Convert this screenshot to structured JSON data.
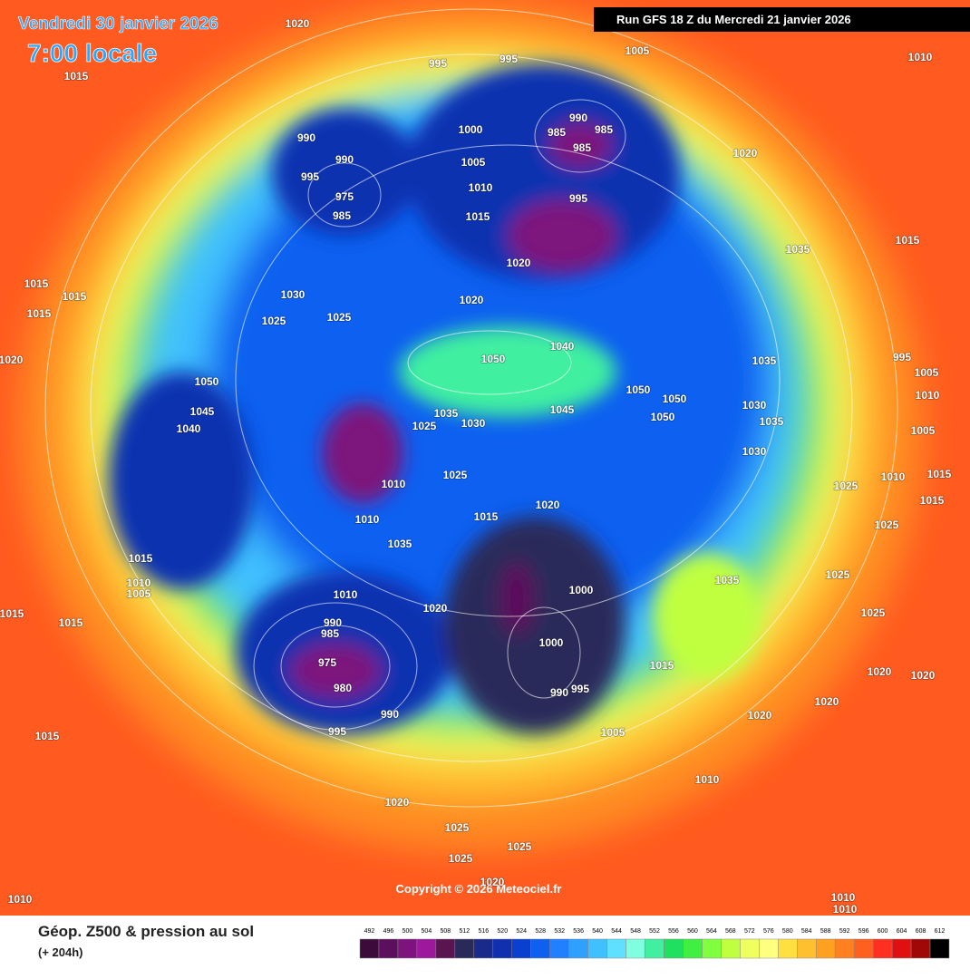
{
  "header": {
    "date": "Vendredi 30 janvier 2026",
    "time": "7:00 locale",
    "run": "Run GFS 18 Z du Mercredi 21 janvier 2026"
  },
  "copyright": "Copyright © 2026 Meteociel.fr",
  "legend": {
    "title": "Géop. Z500 & pression au sol",
    "lead": "(+ 204h)",
    "levels": [
      492,
      496,
      500,
      504,
      508,
      512,
      516,
      520,
      524,
      528,
      532,
      536,
      540,
      544,
      548,
      552,
      556,
      560,
      564,
      568,
      572,
      576,
      580,
      584,
      588,
      592,
      596,
      600,
      604,
      608,
      612
    ],
    "colors": [
      "#3c0b3c",
      "#5c0f5c",
      "#7d137d",
      "#9e189e",
      "#5a1450",
      "#2a2a5a",
      "#1a2a8a",
      "#1030b0",
      "#0a40d0",
      "#1060f0",
      "#2080ff",
      "#30a0ff",
      "#40c0ff",
      "#60e0ff",
      "#80ffe0",
      "#40f0a0",
      "#20e060",
      "#40f040",
      "#80ff40",
      "#c0ff40",
      "#f0ff60",
      "#ffff80",
      "#ffe040",
      "#ffc030",
      "#ffa020",
      "#ff8020",
      "#ff6020",
      "#ff3020",
      "#e01010",
      "#a00808",
      "#000000"
    ]
  },
  "pressure_labels": [
    "1020",
    "1015",
    "995",
    "995",
    "1005",
    "1010",
    "990",
    "985",
    "985",
    "985",
    "990",
    "990",
    "995",
    "975",
    "985",
    "1000",
    "1005",
    "1010",
    "1015",
    "995",
    "1020",
    "1020",
    "1035",
    "1015",
    "1015",
    "1015",
    "1015",
    "1030",
    "1025",
    "1025",
    "1020",
    "1050",
    "1040",
    "1020",
    "1050",
    "1045",
    "1040",
    "1035",
    "1030",
    "1025",
    "1045",
    "1050",
    "1050",
    "1050",
    "1035",
    "995",
    "1030",
    "1030",
    "1035",
    "1005",
    "1010",
    "1005",
    "1025",
    "1010",
    "1020",
    "1015",
    "1010",
    "1035",
    "1025",
    "1010",
    "1015",
    "1015",
    "1025",
    "1015",
    "1010",
    "1005",
    "1010",
    "1020",
    "1000",
    "1035",
    "1025",
    "1025",
    "1015",
    "1015",
    "990",
    "985",
    "975",
    "980",
    "1000",
    "995",
    "990",
    "1015",
    "1020",
    "1020",
    "1020",
    "1020",
    "990",
    "995",
    "1005",
    "1015",
    "1010",
    "1020",
    "1025",
    "1025",
    "1025",
    "1020",
    "1010",
    "1010",
    "1010"
  ]
}
